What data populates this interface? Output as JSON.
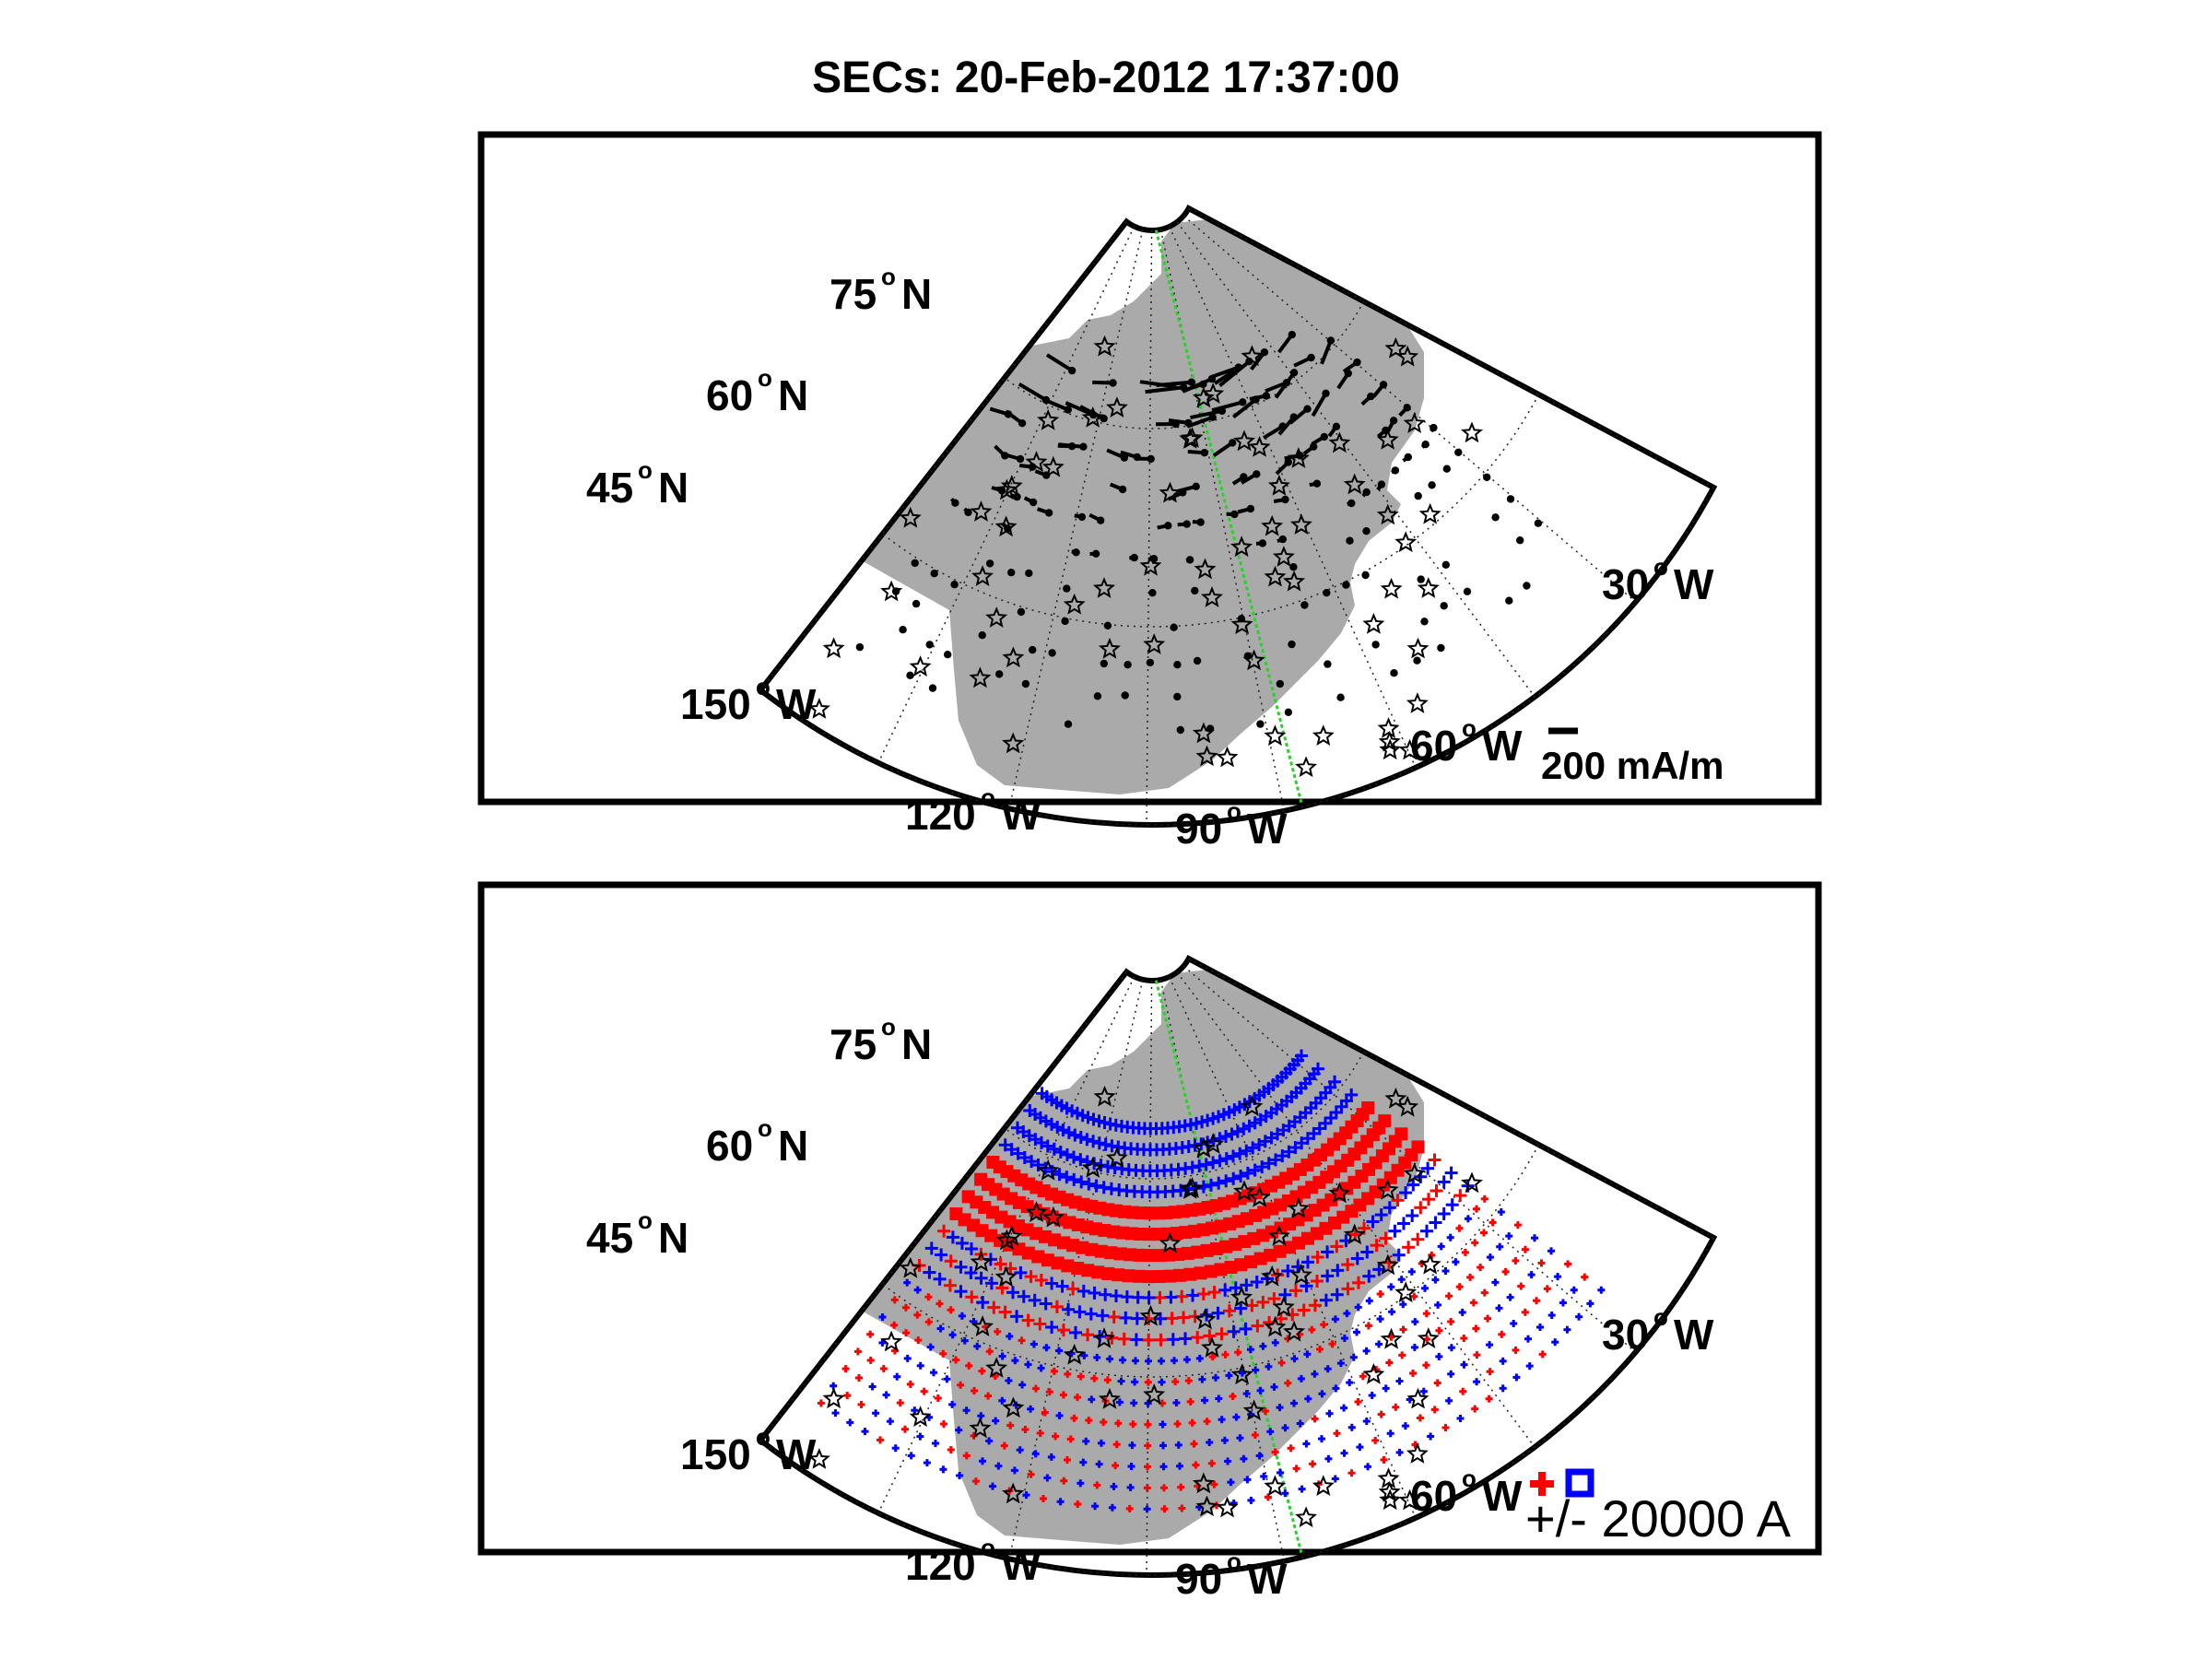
{
  "title": "SECs: 20-Feb-2012 17:37:00",
  "colors": {
    "land": "#aaaaaa",
    "frame": "#000000",
    "grid": "#222222",
    "meridian": "#2bd12b",
    "positive": "#ff0000",
    "negative": "#0000ff"
  },
  "graticule": {
    "latitudes": [
      45,
      60,
      75
    ],
    "longitudes": [
      150,
      120,
      90,
      60,
      30
    ],
    "lat_labels": [
      {
        "deg": "75",
        "hemi": "N"
      },
      {
        "deg": "60",
        "hemi": "N"
      },
      {
        "deg": "45",
        "hemi": "N"
      }
    ],
    "lon_labels": [
      {
        "deg": "150",
        "hemi": "W"
      },
      {
        "deg": "120",
        "hemi": "W"
      },
      {
        "deg": "90",
        "hemi": "W"
      },
      {
        "deg": "60",
        "hemi": "W"
      },
      {
        "deg": "30",
        "hemi": "W"
      }
    ],
    "degree_symbol": "o"
  },
  "panels": [
    {
      "name": "equivalent-currents",
      "legend_text": "200 mA/m"
    },
    {
      "name": "sec-amplitudes",
      "legend_text": "+/- 20000 A"
    }
  ]
}
